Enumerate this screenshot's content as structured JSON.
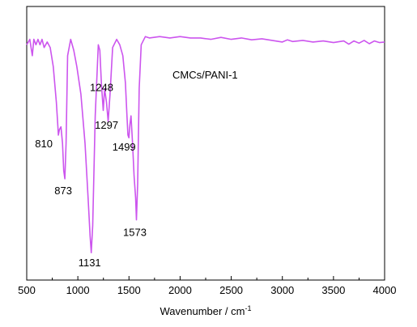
{
  "chart_data": {
    "type": "line",
    "title": "",
    "xlabel": "Wavenumber / cm",
    "xlabel_superscript": "-1",
    "ylabel": "",
    "xlim": [
      500,
      4000
    ],
    "ylim": [
      0,
      1
    ],
    "x_ticks": [
      500,
      1000,
      1500,
      2000,
      2500,
      3000,
      3500,
      4000
    ],
    "x_tick_labels": [
      "500",
      "1000",
      "1500",
      "2000",
      "2500",
      "3000",
      "3500",
      "4000"
    ],
    "y_ticks_shown": false,
    "grid": false,
    "legend": "none",
    "series": [
      {
        "name": "CMCs/PANI-1",
        "color": "#cc55ee",
        "x": [
          500,
          530,
          555,
          570,
          590,
          610,
          630,
          650,
          670,
          700,
          730,
          760,
          790,
          805,
          810,
          820,
          835,
          850,
          862,
          873,
          885,
          900,
          930,
          960,
          990,
          1030,
          1070,
          1100,
          1120,
          1131,
          1145,
          1170,
          1200,
          1215,
          1230,
          1248,
          1262,
          1280,
          1297,
          1315,
          1340,
          1380,
          1410,
          1440,
          1465,
          1480,
          1490,
          1499,
          1510,
          1520,
          1535,
          1550,
          1565,
          1573,
          1585,
          1600,
          1620,
          1660,
          1700,
          1800,
          1900,
          2000,
          2100,
          2200,
          2300,
          2400,
          2500,
          2600,
          2700,
          2800,
          2900,
          3000,
          3050,
          3100,
          3200,
          3300,
          3400,
          3500,
          3600,
          3650,
          3700,
          3750,
          3800,
          3850,
          3900,
          3950,
          4000
        ],
        "y": [
          0.86,
          0.88,
          0.82,
          0.88,
          0.86,
          0.88,
          0.86,
          0.88,
          0.85,
          0.87,
          0.85,
          0.78,
          0.65,
          0.56,
          0.53,
          0.55,
          0.56,
          0.5,
          0.4,
          0.37,
          0.5,
          0.82,
          0.88,
          0.84,
          0.78,
          0.68,
          0.5,
          0.3,
          0.16,
          0.1,
          0.2,
          0.6,
          0.86,
          0.84,
          0.72,
          0.62,
          0.7,
          0.65,
          0.58,
          0.68,
          0.85,
          0.88,
          0.86,
          0.82,
          0.72,
          0.6,
          0.53,
          0.52,
          0.57,
          0.6,
          0.5,
          0.38,
          0.3,
          0.22,
          0.35,
          0.7,
          0.86,
          0.89,
          0.885,
          0.89,
          0.885,
          0.89,
          0.885,
          0.885,
          0.88,
          0.887,
          0.88,
          0.885,
          0.878,
          0.882,
          0.876,
          0.87,
          0.878,
          0.872,
          0.876,
          0.87,
          0.874,
          0.868,
          0.874,
          0.862,
          0.874,
          0.866,
          0.876,
          0.864,
          0.874,
          0.868,
          0.87
        ]
      }
    ],
    "annotations": [
      {
        "text": "810",
        "x": 810
      },
      {
        "text": "873",
        "x": 873
      },
      {
        "text": "1131",
        "x": 1131
      },
      {
        "text": "1248",
        "x": 1248
      },
      {
        "text": "1297",
        "x": 1297
      },
      {
        "text": "1499",
        "x": 1499
      },
      {
        "text": "1573",
        "x": 1573
      }
    ]
  }
}
